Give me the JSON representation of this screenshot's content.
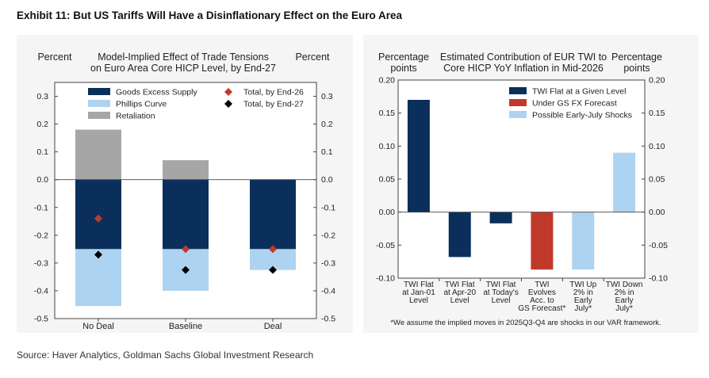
{
  "exhibit_title": "Exhibit 11: But US Tariffs Will Have a Disinflationary Effect on the Euro Area",
  "source": "Source: Haver Analytics, Goldman Sachs Global Investment Research",
  "chart_data": [
    {
      "type": "bar",
      "stacked": true,
      "title_lines": [
        "Model-Implied Effect of Trade Tensions",
        "on Euro Area Core HICP Level, by End-27"
      ],
      "left_axis_label": "Percent",
      "right_axis_label": "Percent",
      "categories": [
        "No Deal",
        "Baseline",
        "Deal"
      ],
      "ylim": [
        -0.5,
        0.35
      ],
      "yticks": [
        "0.3",
        "0.2",
        "0.1",
        "0.0",
        "-0.1",
        "-0.2",
        "-0.3",
        "-0.4",
        "-0.5"
      ],
      "ytick_values": [
        0.3,
        0.2,
        0.1,
        0.0,
        -0.1,
        -0.2,
        -0.3,
        -0.4,
        -0.5
      ],
      "series": [
        {
          "name": "Goods Excess Supply",
          "color": "#0b2f5b",
          "values": [
            -0.25,
            -0.25,
            -0.25
          ]
        },
        {
          "name": "Phillips Curve",
          "color": "#aed3f0",
          "values": [
            -0.205,
            -0.15,
            -0.075
          ]
        },
        {
          "name": "Retaliation",
          "color": "#a6a6a6",
          "values": [
            0.18,
            0.07,
            0.0
          ]
        }
      ],
      "markers": [
        {
          "name": "Total, by End-26",
          "color": "#c0392b",
          "shape": "diamond",
          "values": [
            -0.14,
            -0.25,
            -0.25
          ]
        },
        {
          "name": "Total, by End-27",
          "color": "#000000",
          "shape": "diamond",
          "values": [
            -0.27,
            -0.325,
            -0.325
          ]
        }
      ],
      "legend_placement": "top"
    },
    {
      "type": "bar",
      "title_lines": [
        "Estimated Contribution of EUR TWI to",
        "Core HICP YoY Inflation in Mid-2026"
      ],
      "left_axis_label": [
        "Percentage",
        "points"
      ],
      "right_axis_label": [
        "Percentage",
        "points"
      ],
      "categories": [
        [
          "TWI Flat",
          "at Jan-01",
          "Level"
        ],
        [
          "TWI Flat",
          "at Apr-20",
          "Level"
        ],
        [
          "TWI Flat",
          "at Today's",
          "Level"
        ],
        [
          "TWI",
          "Evolves",
          "Acc. to",
          "GS Forecast*"
        ],
        [
          "TWI Up",
          "2% in",
          "Early",
          "July*"
        ],
        [
          "TWI Down",
          "2% in",
          "Early",
          "July*"
        ]
      ],
      "values": [
        0.17,
        -0.068,
        -0.017,
        -0.087,
        -0.087,
        0.09
      ],
      "bar_series": [
        0,
        0,
        0,
        1,
        2,
        2
      ],
      "series": [
        {
          "name": "TWI Flat at a Given Level",
          "color": "#0b2f5b"
        },
        {
          "name": "Under GS FX Forecast",
          "color": "#c0392b"
        },
        {
          "name": "Possible Early-July Shocks",
          "color": "#aed3f0"
        }
      ],
      "ylim": [
        -0.1,
        0.2
      ],
      "yticks": [
        "0.20",
        "0.15",
        "0.10",
        "0.05",
        "0.00",
        "-0.05",
        "-0.10"
      ],
      "ytick_values": [
        0.2,
        0.15,
        0.1,
        0.05,
        0.0,
        -0.05,
        -0.1
      ],
      "footnote": "*We assume the implied moves in 2025Q3-Q4 are shocks in our VAR framework.",
      "legend_placement": "top-right"
    }
  ]
}
